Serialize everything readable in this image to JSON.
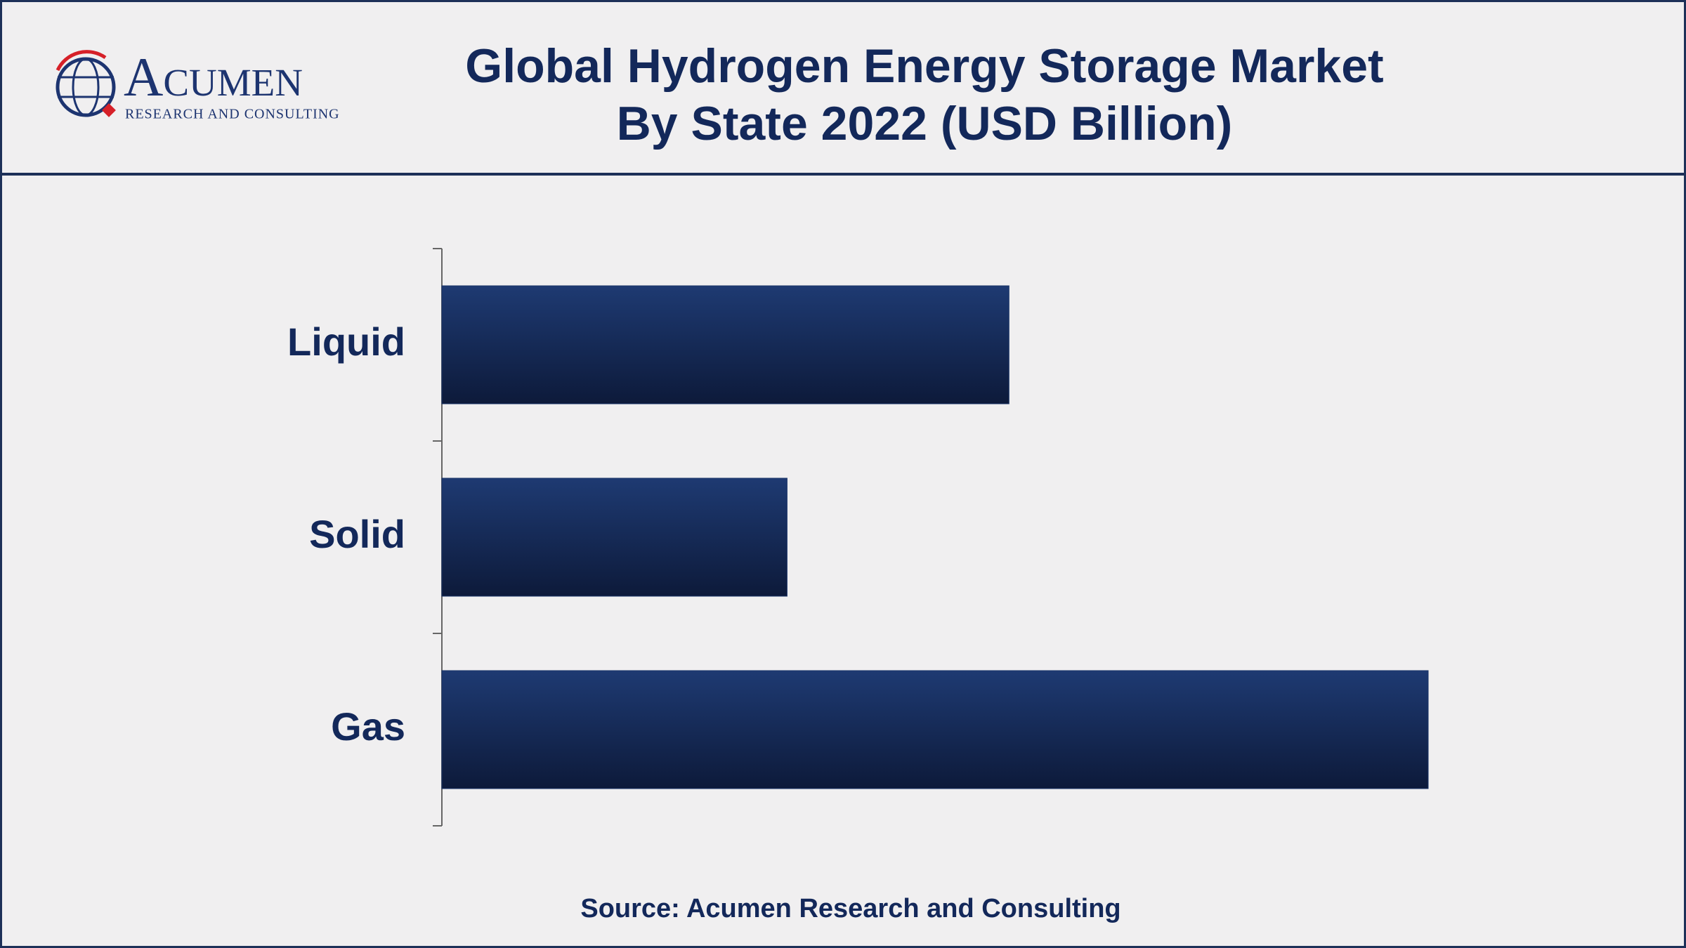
{
  "logo": {
    "name": "Acumen",
    "tagline": "RESEARCH AND CONSULTING"
  },
  "chart_data": {
    "type": "bar",
    "orientation": "horizontal",
    "title": [
      "Global Hydrogen Energy Storage Market",
      "By State 2022 (USD Billion)"
    ],
    "categories": [
      "Liquid",
      "Solid",
      "Gas"
    ],
    "values": [
      4.6,
      2.8,
      8.0
    ],
    "color": "#1a3468",
    "source": "Source: Acumen Research and Consulting"
  }
}
